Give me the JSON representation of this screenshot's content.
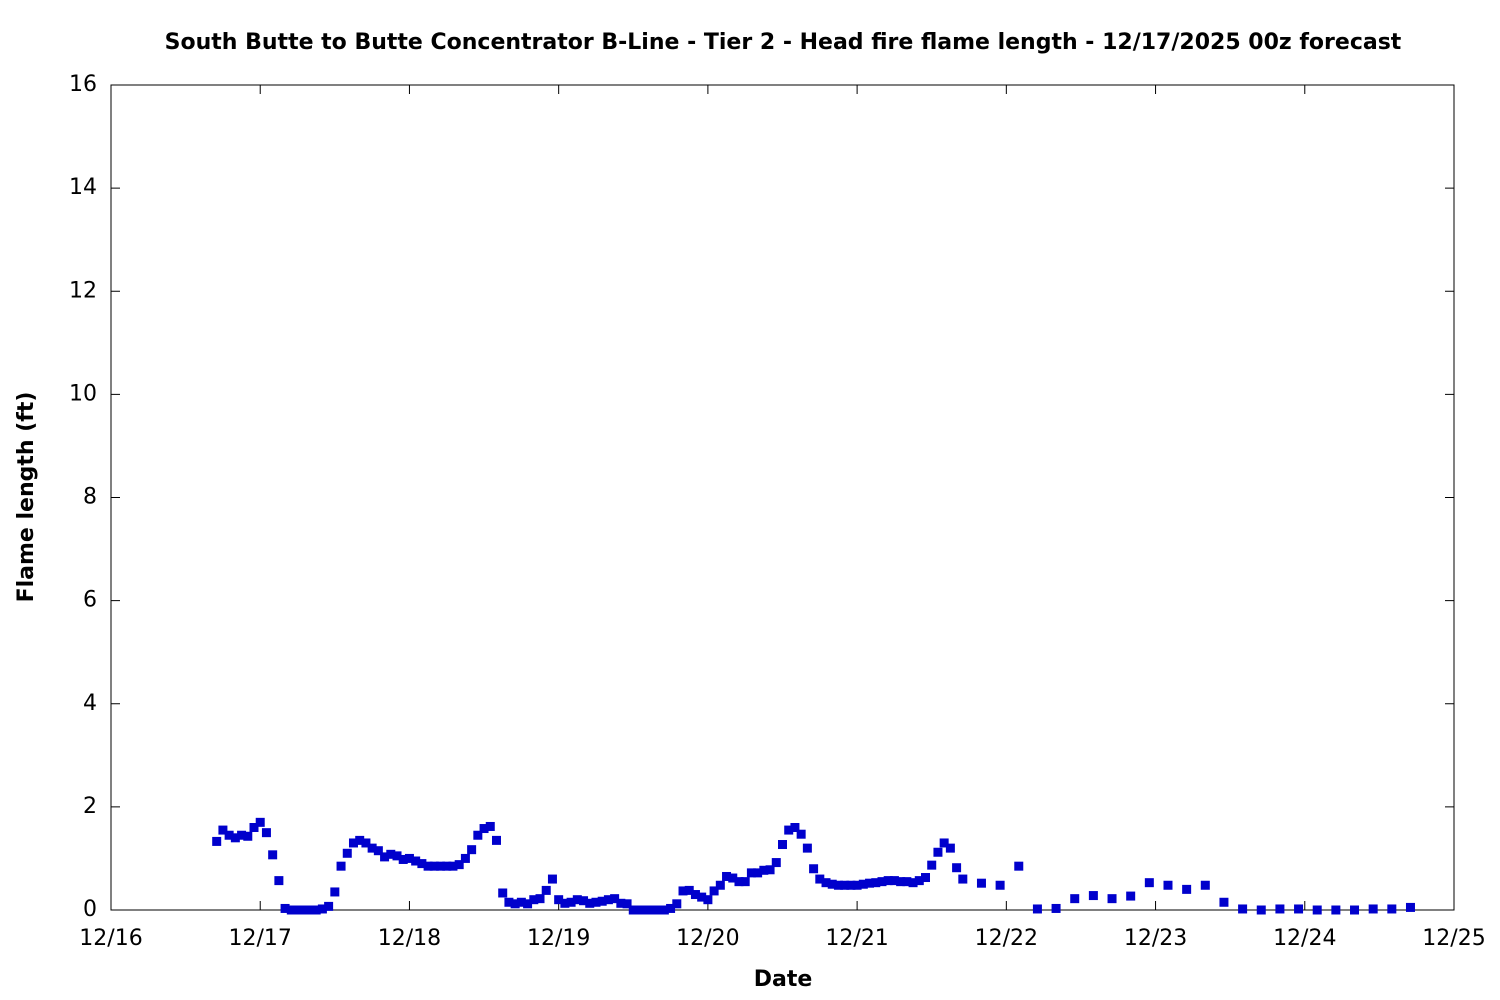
{
  "chart_data": {
    "type": "scatter",
    "title": "South Butte to Butte Concentrator B-Line - Tier 2 - Head fire flame length - 12/17/2025 00z forecast",
    "xlabel": "Date",
    "ylabel": "Flame length (ft)",
    "color": "#0000cc",
    "x": [
      17,
      18,
      19,
      20,
      21,
      22,
      23,
      24,
      25,
      26,
      27,
      28,
      29,
      30,
      31,
      32,
      33,
      34,
      35,
      36,
      37,
      38,
      39,
      40,
      41,
      42,
      43,
      44,
      45,
      46,
      47,
      48,
      49,
      50,
      51,
      52,
      53,
      54,
      55,
      56,
      57,
      58,
      59,
      60,
      61,
      62,
      63,
      64,
      65,
      66,
      67,
      68,
      69,
      70,
      71,
      72,
      73,
      74,
      75,
      76,
      77,
      78,
      79,
      80,
      81,
      82,
      83,
      84,
      85,
      86,
      87,
      88,
      89,
      90,
      91,
      92,
      93,
      94,
      95,
      96,
      97,
      98,
      99,
      100,
      101,
      102,
      103,
      104,
      105,
      106,
      107,
      108,
      109,
      110,
      111,
      112,
      113,
      114,
      115,
      116,
      117,
      118,
      119,
      120,
      121,
      122,
      123,
      124,
      125,
      126,
      127,
      128,
      129,
      130,
      131,
      132,
      133,
      134,
      135,
      136,
      137,
      140,
      143,
      146,
      149,
      152,
      155,
      158,
      161,
      164,
      167,
      170,
      173,
      176,
      179,
      182,
      185,
      188,
      191,
      194,
      197,
      200,
      203,
      206,
      209
    ],
    "values": [
      1.33,
      1.55,
      1.45,
      1.4,
      1.45,
      1.43,
      1.6,
      1.7,
      1.5,
      1.07,
      0.57,
      0.03,
      0,
      0,
      0,
      0,
      0,
      0.02,
      0.07,
      0.35,
      0.85,
      1.1,
      1.3,
      1.35,
      1.3,
      1.2,
      1.15,
      1.03,
      1.08,
      1.05,
      0.98,
      1.0,
      0.95,
      0.9,
      0.85,
      0.85,
      0.85,
      0.85,
      0.85,
      0.88,
      1.0,
      1.17,
      1.45,
      1.58,
      1.62,
      1.35,
      0.33,
      0.15,
      0.12,
      0.15,
      0.12,
      0.2,
      0.22,
      0.38,
      0.6,
      0.2,
      0.13,
      0.15,
      0.2,
      0.18,
      0.13,
      0.15,
      0.17,
      0.2,
      0.22,
      0.13,
      0.12,
      0,
      0,
      0,
      0,
      0,
      0,
      0.03,
      0.12,
      0.37,
      0.38,
      0.3,
      0.25,
      0.2,
      0.37,
      0.48,
      0.65,
      0.62,
      0.55,
      0.55,
      0.72,
      0.72,
      0.77,
      0.78,
      0.92,
      1.27,
      1.55,
      1.6,
      1.47,
      1.2,
      0.8,
      0.6,
      0.53,
      0.5,
      0.48,
      0.48,
      0.48,
      0.48,
      0.5,
      0.52,
      0.53,
      0.55,
      0.57,
      0.57,
      0.55,
      0.55,
      0.53,
      0.57,
      0.63,
      0.87,
      1.12,
      1.3,
      1.2,
      0.82,
      0.6,
      0.52,
      0.48,
      0.85,
      0.02,
      0.03,
      0.22,
      0.28,
      0.22,
      0.27,
      0.53,
      0.48,
      0.4,
      0.48,
      0.15,
      0.02,
      0,
      0.02,
      0.02,
      0,
      0,
      0,
      0.02,
      0.02,
      0.05
    ],
    "xlim": [
      0,
      216
    ],
    "xticks": [
      {
        "value": 0,
        "label": "12/16"
      },
      {
        "value": 24,
        "label": "12/17"
      },
      {
        "value": 48,
        "label": "12/18"
      },
      {
        "value": 72,
        "label": "12/19"
      },
      {
        "value": 96,
        "label": "12/20"
      },
      {
        "value": 120,
        "label": "12/21"
      },
      {
        "value": 144,
        "label": "12/22"
      },
      {
        "value": 168,
        "label": "12/23"
      },
      {
        "value": 192,
        "label": "12/24"
      },
      {
        "value": 216,
        "label": "12/25"
      }
    ],
    "ylim": [
      0,
      16
    ],
    "yticks": [
      0,
      2,
      4,
      6,
      8,
      10,
      12,
      14,
      16
    ],
    "grid": false
  }
}
